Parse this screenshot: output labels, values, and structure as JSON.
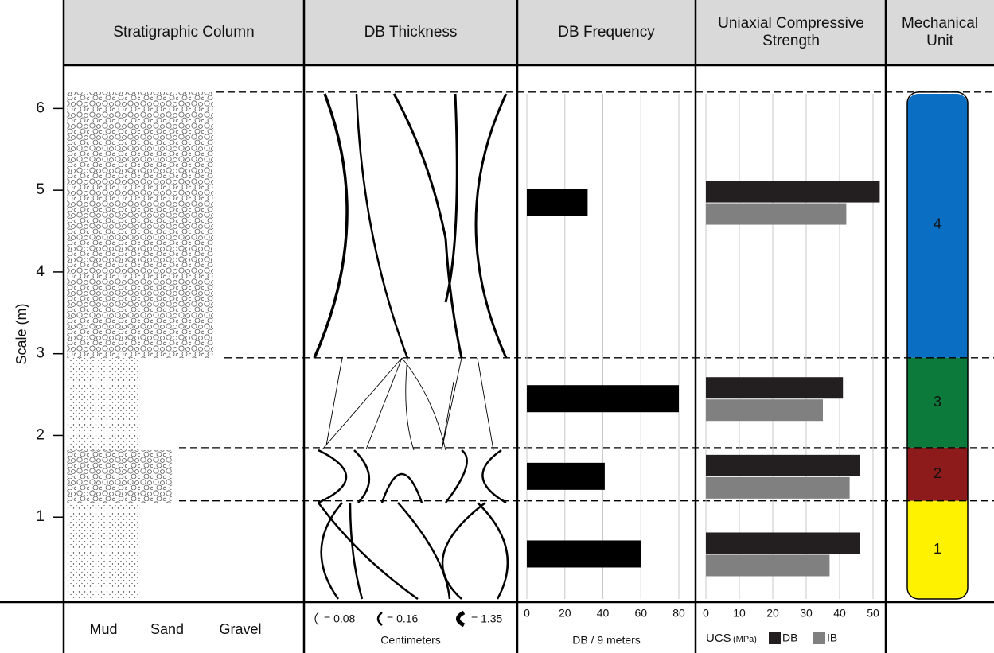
{
  "header": {
    "columns": [
      "Stratigraphic Column",
      "DB Thickness",
      "Mechanical Unit"
    ]
  },
  "scale": {
    "label": "Scale (m)",
    "ylim": [
      0,
      6.5
    ],
    "yticks": [
      1,
      2,
      3,
      4,
      5,
      6
    ]
  },
  "stratigraphic_column": {
    "grain_sizes": [
      "Mud",
      "Sand",
      "Gravel"
    ]
  },
  "db_thickness": {
    "legend": [
      "= 0.08",
      "= 0.16",
      "= 1.35"
    ],
    "unit": "Centimeters"
  },
  "mechanical_units": {
    "labels": [
      "1",
      "2",
      "3",
      "4"
    ],
    "bottoms": [
      0,
      1.2,
      1.85,
      2.95
    ],
    "tops": [
      1.2,
      1.85,
      2.95,
      6.2
    ],
    "colors": [
      "#fff200",
      "#8e1b1b",
      "#0b7a3b",
      "#0a6fc2"
    ]
  },
  "chart_data": [
    {
      "type": "bar",
      "title": "DB Frequency",
      "xlabel": "DB / 9 meters",
      "y": [
        0.55,
        1.5,
        2.45,
        4.85
      ],
      "values": [
        60,
        41,
        80,
        32
      ],
      "color": "#000000",
      "xlim": [
        0,
        80
      ],
      "xticks": [
        0,
        20,
        40,
        60,
        80
      ],
      "grid": true
    },
    {
      "type": "grouped-bar",
      "title": "Uniaxial Compressive Strength",
      "xlabel": "UCS",
      "xlabel_unit": "(MPa)",
      "y": [
        0.55,
        1.5,
        2.45,
        4.85
      ],
      "series": [
        {
          "name": "DB",
          "color": "#231f20",
          "values": [
            46,
            46,
            41,
            52
          ]
        },
        {
          "name": "IB",
          "color": "#808080",
          "values": [
            37,
            43,
            35,
            42
          ]
        }
      ],
      "xlim": [
        0,
        50
      ],
      "xticks": [
        0,
        10,
        20,
        30,
        40,
        50
      ],
      "grid": true
    }
  ]
}
